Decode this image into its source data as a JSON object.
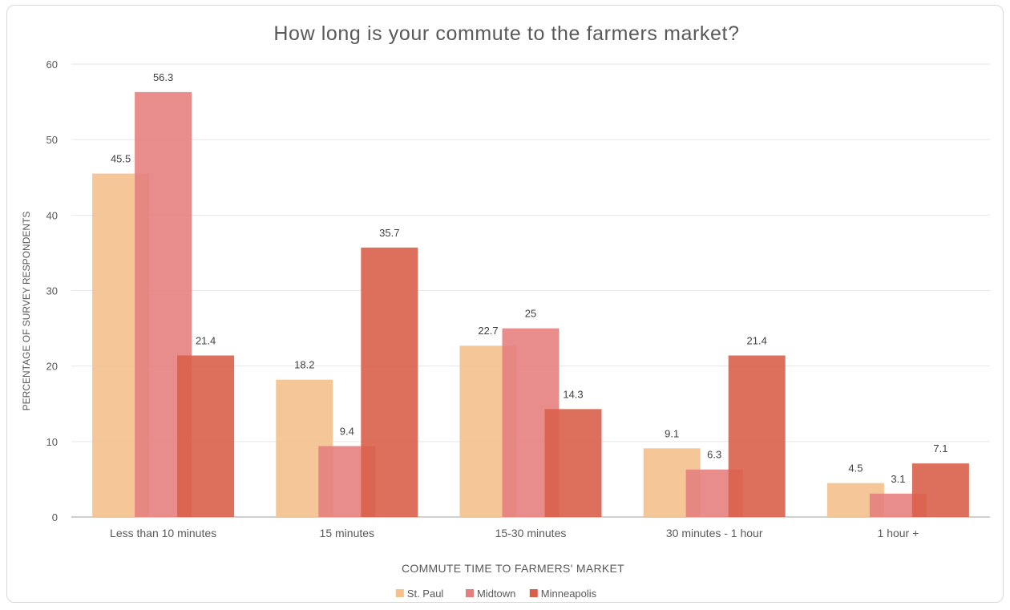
{
  "chart_data": {
    "type": "bar",
    "title": "How long is your commute to the farmers market?",
    "xlabel": "COMMUTE TIME TO FARMERS' MARKET",
    "ylabel": "PERCENTAGE OF SURVEY RESPONDENTS",
    "categories": [
      "Less than 10 minutes",
      "15 minutes",
      "15-30 minutes",
      "30 minutes - 1 hour",
      "1 hour +"
    ],
    "series": [
      {
        "name": "St. Paul",
        "color": "#f4c08c",
        "values": [
          45.5,
          18.2,
          22.7,
          9.1,
          4.5
        ]
      },
      {
        "name": "Midtown",
        "color": "#e57f7f",
        "values": [
          56.3,
          9.4,
          25,
          6.3,
          3.1
        ]
      },
      {
        "name": "Minneapolis",
        "color": "#d9604a",
        "values": [
          21.4,
          35.7,
          14.3,
          21.4,
          7.1
        ]
      }
    ],
    "ylim": [
      0,
      60
    ],
    "yticks": [
      0,
      10,
      20,
      30,
      40,
      50,
      60
    ],
    "grid": true,
    "legend": "bottom"
  }
}
